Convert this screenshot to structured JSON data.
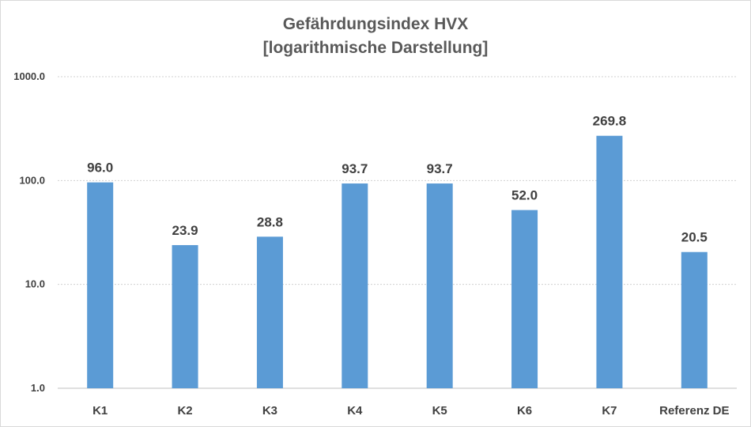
{
  "chart_data": {
    "type": "bar",
    "title": "Gefährdungsindex HVX",
    "subtitle": "[logarithmische Darstellung]",
    "categories": [
      "K1",
      "K2",
      "K3",
      "K4",
      "K5",
      "K6",
      "K7",
      "Referenz DE"
    ],
    "values": [
      96.0,
      23.9,
      28.8,
      93.7,
      93.7,
      52.0,
      269.8,
      20.5
    ],
    "value_labels": [
      "96.0",
      "23.9",
      "28.8",
      "93.7",
      "93.7",
      "52.0",
      "269.8",
      "20.5"
    ],
    "yscale": "log",
    "ylim": [
      1,
      1000
    ],
    "yticks": [
      1,
      10,
      100,
      1000
    ],
    "ytick_labels": [
      "1.0",
      "10.0",
      "100.0",
      "1000.0"
    ],
    "grid": true,
    "legend": "none",
    "bar_color": "#5b9bd5"
  }
}
